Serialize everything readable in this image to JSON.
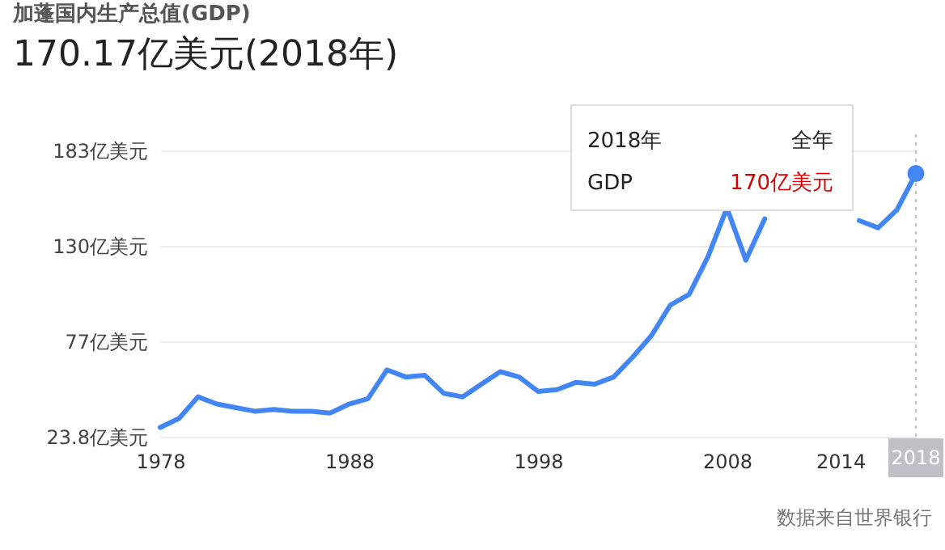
{
  "chart_data": {
    "type": "line",
    "title": "加蓬国内生产总值(GDP)",
    "subtitle": "170.17亿美元(2018年)",
    "x": [
      1978,
      1979,
      1980,
      1981,
      1982,
      1983,
      1984,
      1985,
      1986,
      1987,
      1988,
      1989,
      1990,
      1991,
      1992,
      1993,
      1994,
      1995,
      1996,
      1997,
      1998,
      1999,
      2000,
      2001,
      2002,
      2003,
      2004,
      2005,
      2006,
      2007,
      2008,
      2009,
      2010,
      2011,
      2012,
      2013,
      2014,
      2015,
      2016,
      2017,
      2018
    ],
    "series": [
      {
        "color": "#4285f4",
        "values": [
          29,
          34,
          46,
          42,
          40,
          38,
          39,
          38,
          38,
          37,
          42,
          45,
          61,
          57,
          58,
          48,
          46,
          53,
          60,
          57,
          49,
          50,
          54,
          53,
          57,
          68,
          80,
          97,
          103,
          124,
          151,
          122,
          145,
          null,
          null,
          null,
          null,
          144,
          140,
          150,
          170.17
        ]
      }
    ],
    "xlim": [
      1978,
      2018
    ],
    "xticks": [
      1978,
      1988,
      1998,
      2008,
      2014
    ],
    "ylim": [
      23.8,
      183
    ],
    "yticks": [
      {
        "value": 23.8,
        "label": "23.8亿美元"
      },
      {
        "value": 77,
        "label": "77亿美元"
      },
      {
        "value": 130,
        "label": "130亿美元"
      },
      {
        "value": 183,
        "label": "183亿美元"
      }
    ],
    "grid": "y",
    "ref_lines": [
      {
        "axis": "x",
        "value": 2018,
        "label": "2018",
        "color": "#bdc1c6",
        "line_style": "dotted"
      }
    ],
    "annotations": [
      "2018年",
      "全年",
      "GDP",
      "170亿美元",
      "数据来自世界银行"
    ]
  }
}
